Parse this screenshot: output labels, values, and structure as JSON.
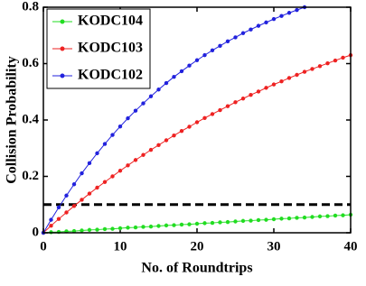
{
  "chart_data": {
    "type": "line",
    "xlabel": "No. of Roundtrips",
    "ylabel": "Collision Probability",
    "x": [
      0,
      1,
      2,
      3,
      4,
      5,
      6,
      7,
      8,
      9,
      10,
      11,
      12,
      13,
      14,
      15,
      16,
      17,
      18,
      19,
      20,
      21,
      22,
      23,
      24,
      25,
      26,
      27,
      28,
      29,
      30,
      31,
      32,
      33,
      34,
      35,
      36,
      37,
      38,
      39,
      40
    ],
    "series": [
      {
        "name": "KODC104",
        "color": "#22dd22",
        "values": [
          0,
          0.002,
          0.003,
          0.005,
          0.006,
          0.008,
          0.01,
          0.011,
          0.013,
          0.014,
          0.016,
          0.018,
          0.019,
          0.021,
          0.022,
          0.024,
          0.026,
          0.027,
          0.029,
          0.03,
          0.032,
          0.034,
          0.035,
          0.037,
          0.038,
          0.04,
          0.042,
          0.043,
          0.045,
          0.046,
          0.048,
          0.05,
          0.051,
          0.053,
          0.054,
          0.056,
          0.058,
          0.059,
          0.061,
          0.062,
          0.064
        ]
      },
      {
        "name": "KODC103",
        "color": "#ee2222",
        "values": [
          0,
          0.025,
          0.049,
          0.072,
          0.095,
          0.117,
          0.139,
          0.16,
          0.18,
          0.2,
          0.22,
          0.239,
          0.258,
          0.276,
          0.294,
          0.311,
          0.328,
          0.345,
          0.361,
          0.376,
          0.392,
          0.407,
          0.421,
          0.435,
          0.449,
          0.463,
          0.476,
          0.489,
          0.501,
          0.514,
          0.526,
          0.537,
          0.549,
          0.56,
          0.571,
          0.581,
          0.591,
          0.601,
          0.611,
          0.621,
          0.63
        ]
      },
      {
        "name": "KODC102",
        "color": "#2222dd",
        "values": [
          0,
          0.046,
          0.09,
          0.132,
          0.172,
          0.211,
          0.247,
          0.282,
          0.315,
          0.347,
          0.377,
          0.406,
          0.433,
          0.459,
          0.484,
          0.508,
          0.531,
          0.553,
          0.573,
          0.593,
          0.612,
          0.63,
          0.647,
          0.663,
          0.679,
          0.693,
          0.708,
          0.721,
          0.734,
          0.746,
          0.758,
          0.769,
          0.78,
          0.79,
          0.8,
          null,
          null,
          null,
          null,
          null,
          null
        ]
      }
    ],
    "threshold": 0.1,
    "xlim": [
      0,
      40
    ],
    "xticks": [
      0,
      10,
      20,
      30,
      40
    ],
    "ylim": [
      0,
      0.8
    ],
    "yticks": [
      0,
      0.2,
      0.4,
      0.6,
      0.8
    ],
    "legend": "upper left"
  }
}
